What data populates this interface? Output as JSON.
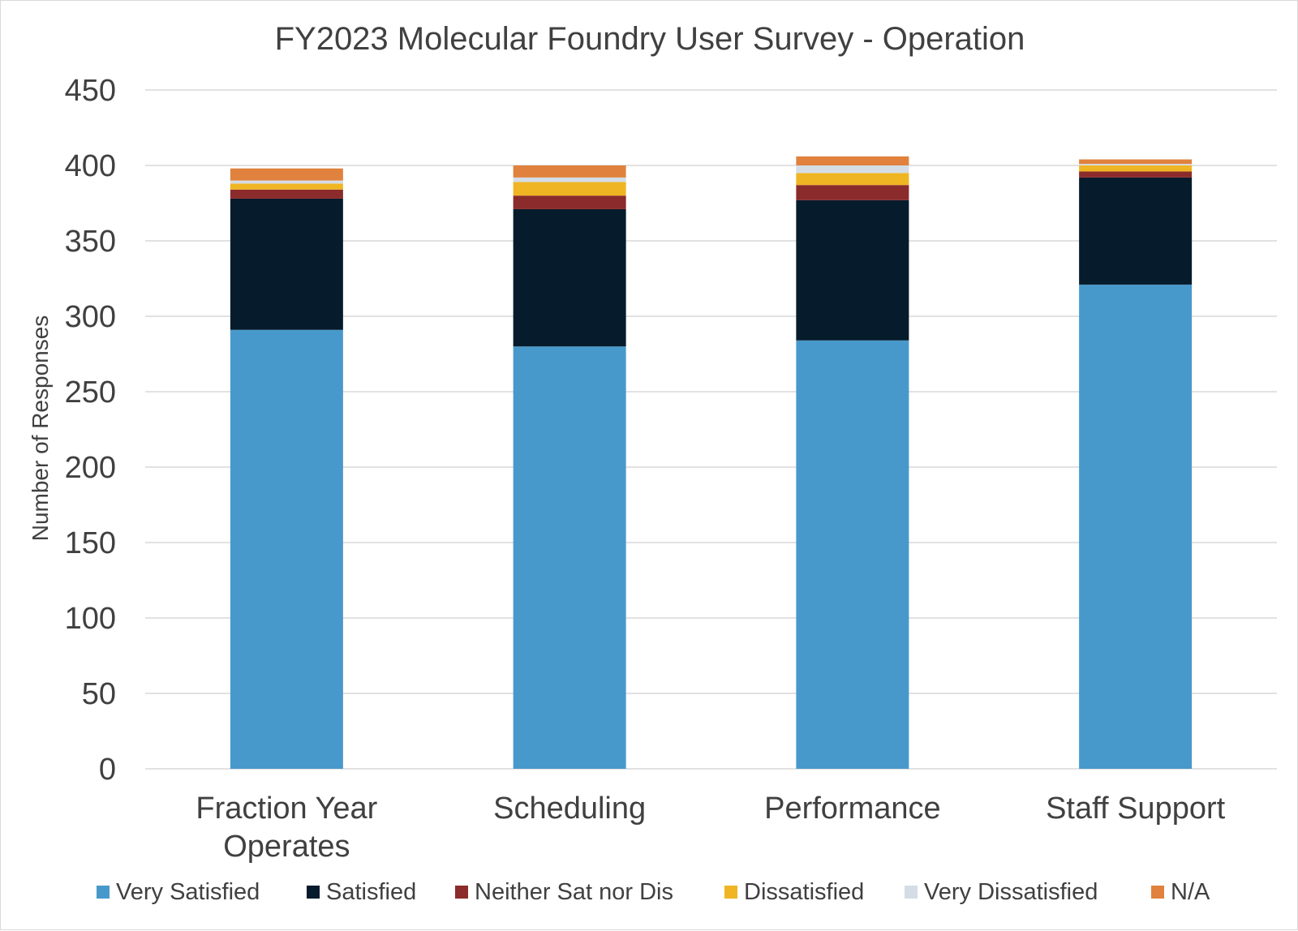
{
  "chart_data": {
    "type": "bar",
    "stacked": true,
    "title": "FY2023 Molecular Foundry User Survey - Operation",
    "ylabel": "Number of Responses",
    "xlabel": "",
    "ylim": [
      0,
      450
    ],
    "yticks": [
      0,
      50,
      100,
      150,
      200,
      250,
      300,
      350,
      400,
      450
    ],
    "grid": true,
    "legend_position": "bottom",
    "categories": [
      "Fraction Year Operates",
      "Scheduling",
      "Performance",
      "Staff Support"
    ],
    "category_lines": [
      [
        "Fraction Year",
        "Operates"
      ],
      [
        "Scheduling"
      ],
      [
        "Performance"
      ],
      [
        "Staff Support"
      ]
    ],
    "series": [
      {
        "name": "Very Satisfied",
        "color": "#4899CB",
        "values": [
          291,
          280,
          284,
          321
        ]
      },
      {
        "name": "Satisfied",
        "color": "#061B2B",
        "values": [
          87,
          91,
          93,
          71
        ]
      },
      {
        "name": "Neither Sat nor Dis",
        "color": "#8B2B2B",
        "values": [
          6,
          9,
          10,
          4
        ]
      },
      {
        "name": "Dissatisfied",
        "color": "#EFB523",
        "values": [
          4,
          9,
          8,
          4
        ]
      },
      {
        "name": "Very Dissatisfied",
        "color": "#D4DDE6",
        "values": [
          2,
          3,
          5,
          1
        ]
      },
      {
        "name": "N/A",
        "color": "#E0823D",
        "values": [
          8,
          8,
          6,
          3
        ]
      }
    ]
  }
}
